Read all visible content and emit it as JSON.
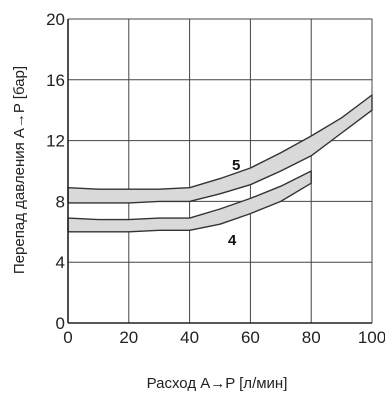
{
  "chart_data": {
    "type": "area",
    "title": "",
    "xlabel": "Расход A→P [л/мин]",
    "ylabel": "Перепад давления A→P [бар]",
    "xlim": [
      0,
      100
    ],
    "ylim": [
      0,
      20
    ],
    "x_ticks": [
      "0",
      "20",
      "40",
      "60",
      "80",
      "100"
    ],
    "y_ticks": [
      "0",
      "4",
      "8",
      "12",
      "16",
      "20"
    ],
    "x_tick_values": [
      0,
      20,
      40,
      60,
      80,
      100
    ],
    "y_tick_values": [
      0,
      4,
      8,
      12,
      16,
      20
    ],
    "grid": true,
    "series": [
      {
        "name": "5",
        "x": [
          0,
          10,
          20,
          30,
          40,
          50,
          60,
          70,
          80,
          90,
          100
        ],
        "lower": [
          7.9,
          7.9,
          7.9,
          8.0,
          8.0,
          8.5,
          9.1,
          10.0,
          11.0,
          12.5,
          14.0
        ],
        "upper": [
          8.9,
          8.8,
          8.8,
          8.8,
          8.9,
          9.5,
          10.2,
          11.2,
          12.3,
          13.5,
          15.0
        ]
      },
      {
        "name": "4",
        "x": [
          0,
          10,
          20,
          30,
          40,
          50,
          60,
          70,
          80
        ],
        "lower": [
          6.0,
          6.0,
          6.0,
          6.1,
          6.1,
          6.5,
          7.2,
          8.0,
          9.2
        ],
        "upper": [
          6.9,
          6.8,
          6.8,
          6.9,
          6.9,
          7.5,
          8.2,
          9.0,
          10.0
        ]
      }
    ],
    "band_fill": "#d9d9d9",
    "band_stroke": "#333333"
  }
}
